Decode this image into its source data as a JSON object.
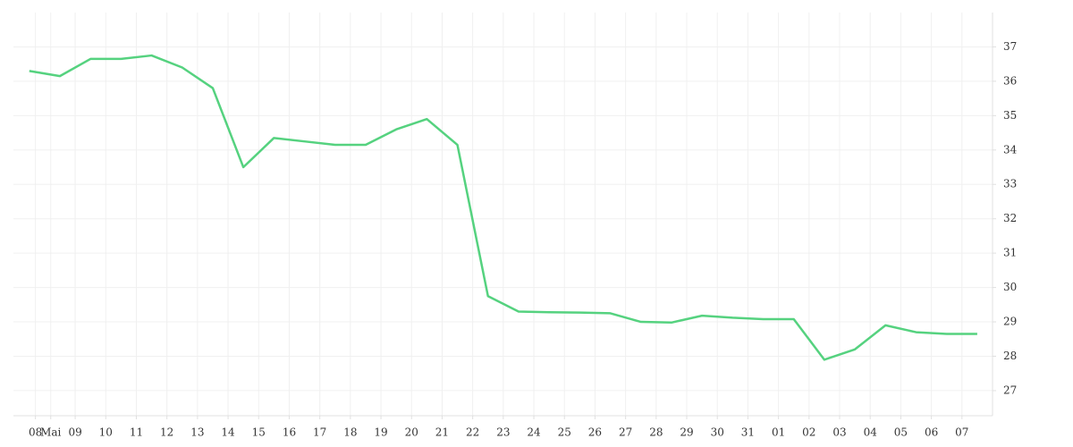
{
  "chart_data": {
    "type": "line",
    "x": [
      7.5,
      8.5,
      9.5,
      10.5,
      11.5,
      12.5,
      13.5,
      14.5,
      15.5,
      16.5,
      17.5,
      18.5,
      19.5,
      20.5,
      21.5,
      22.5,
      23.5,
      24.5,
      25.5,
      26.5,
      27.5,
      28.5,
      29.5,
      30.5,
      31.5,
      32.5,
      33.5,
      34.5,
      35.5,
      36.5,
      37.5,
      38.5
    ],
    "series": [
      {
        "color": "#55d27f",
        "values": [
          36.3,
          36.15,
          36.65,
          36.65,
          36.75,
          36.4,
          35.8,
          33.5,
          34.35,
          34.25,
          34.15,
          34.15,
          34.6,
          34.9,
          34.15,
          29.75,
          29.3,
          29.28,
          29.27,
          29.25,
          29.0,
          28.98,
          29.18,
          29.12,
          29.08,
          29.08,
          27.9,
          28.2,
          28.9,
          28.7,
          28.65,
          28.65
        ]
      }
    ],
    "xlim": [
      6.98,
      39.0
    ],
    "xticks": [
      {
        "value": 7.7,
        "label": "08"
      },
      {
        "value": 8.2,
        "label": "Mai"
      },
      {
        "value": 9,
        "label": "09"
      },
      10,
      11,
      12,
      13,
      14,
      15,
      16,
      17,
      18,
      19,
      20,
      21,
      22,
      23,
      24,
      25,
      26,
      27,
      28,
      29,
      30,
      31,
      {
        "value": 32,
        "label": "01"
      },
      {
        "value": 33,
        "label": "02"
      },
      {
        "value": 34,
        "label": "03"
      },
      {
        "value": 35,
        "label": "04"
      },
      {
        "value": 36,
        "label": "05"
      },
      {
        "value": 37,
        "label": "06"
      },
      {
        "value": 38,
        "label": "07"
      }
    ],
    "ylim": [
      26.27,
      38.0
    ],
    "yticks": [
      27,
      28,
      29,
      30,
      31,
      32,
      33,
      34,
      35,
      36,
      37
    ],
    "grid": true
  }
}
